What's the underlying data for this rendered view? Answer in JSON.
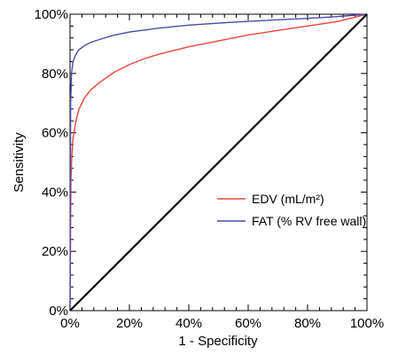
{
  "chart_data": {
    "type": "line",
    "xlabel": "1 - Specificity",
    "ylabel": "Sensitivity",
    "xlim": [
      0,
      100
    ],
    "ylim": [
      0,
      100
    ],
    "x_ticks": [
      "0%",
      "20%",
      "40%",
      "60%",
      "80%",
      "100%"
    ],
    "y_ticks": [
      "0%",
      "20%",
      "40%",
      "60%",
      "80%",
      "100%"
    ],
    "grid": false,
    "legend_position": "center-right",
    "series": [
      {
        "name": "EDV (mL/m²)",
        "color": "#e8473a",
        "x": [
          0,
          0.3,
          0.6,
          1,
          2,
          3,
          5,
          7,
          10,
          15,
          20,
          25,
          30,
          40,
          50,
          60,
          70,
          80,
          90,
          100
        ],
        "y": [
          0,
          44,
          52,
          58,
          64,
          68,
          72,
          74.5,
          77,
          80.5,
          83,
          85,
          86.5,
          89,
          91,
          93,
          94.5,
          96,
          97.5,
          100
        ]
      },
      {
        "name": "FAT (% RV free wall)",
        "color": "#4a4aa6",
        "x": [
          0,
          0.2,
          0.5,
          1,
          2,
          3,
          5,
          7,
          10,
          15,
          20,
          30,
          40,
          50,
          60,
          70,
          80,
          90,
          100
        ],
        "y": [
          0,
          70,
          80,
          84,
          86.5,
          88,
          89.5,
          90.5,
          91.5,
          93,
          94,
          95.3,
          96.3,
          97,
          97.6,
          98.1,
          98.6,
          99.2,
          100
        ]
      },
      {
        "name": "",
        "color": "#000000",
        "x": [
          0,
          100
        ],
        "y": [
          0,
          100
        ]
      }
    ]
  }
}
